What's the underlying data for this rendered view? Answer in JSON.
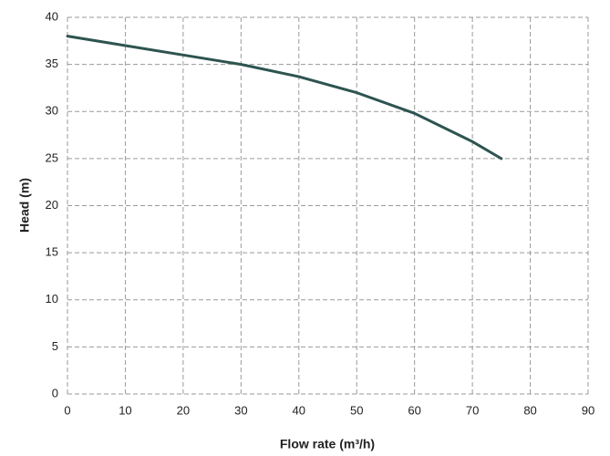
{
  "chart_data": {
    "type": "line",
    "x_label": "Flow rate (m³/h)",
    "y_label": "Head (m)",
    "x": [
      0,
      10,
      20,
      30,
      40,
      50,
      60,
      70,
      75
    ],
    "values": [
      38,
      37,
      36,
      35,
      33.7,
      32,
      29.8,
      26.8,
      25
    ],
    "color": "#2e5450",
    "xlim": [
      0,
      90
    ],
    "xticks": [
      0,
      10,
      20,
      30,
      40,
      50,
      60,
      70,
      80,
      90
    ],
    "ylim": [
      0,
      40
    ],
    "yticks": [
      0,
      5,
      10,
      15,
      20,
      25,
      30,
      35,
      40
    ],
    "grid": true
  }
}
